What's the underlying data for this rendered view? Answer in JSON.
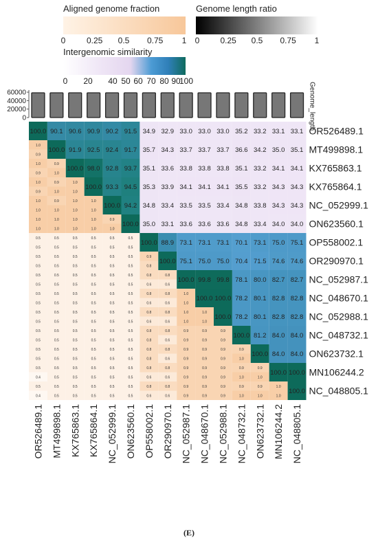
{
  "legends": {
    "aligned": {
      "title": "Aligned genome fraction",
      "ticks": [
        "0",
        "0.25",
        "0.5",
        "0.75",
        "1"
      ],
      "colors": [
        "#ffffff",
        "#f7c79a"
      ]
    },
    "length": {
      "title": "Genome length ratio",
      "ticks": [
        "0",
        "0.25",
        "0.5",
        "0.75",
        "1"
      ],
      "colors": [
        "#000000",
        "#ffffff"
      ]
    },
    "similarity": {
      "title": "Intergenomic similarity",
      "ticks": [
        "0",
        "20",
        "40",
        "50",
        "60",
        "70",
        "80",
        "90",
        "100"
      ],
      "tick_values": [
        0,
        20,
        40,
        50,
        60,
        70,
        80,
        90,
        100
      ],
      "colors": [
        "#ffffff",
        "#e6d8f0",
        "#4a9ad4",
        "#0e6b60"
      ]
    }
  },
  "caption": "(E)",
  "chart_data": {
    "type": "heatmap",
    "genomes": [
      "OR526489.1",
      "MT499898.1",
      "KX765863.1",
      "KX765864.1",
      "NC_052999.1",
      "ON623560.1",
      "OP558002.1",
      "OR290970.1",
      "NC_052987.1",
      "NC_048670.1",
      "NC_052988.1",
      "NC_048732.1",
      "ON623732.1",
      "MN106244.2",
      "NC_048805.1"
    ],
    "bar_axis_label": "Genome_length",
    "bar_axis_ticks": [
      0,
      20000,
      40000,
      60000
    ],
    "bar_axis_tick_labels": [
      "0",
      "20000",
      "40000",
      "60000"
    ],
    "genome_length_ylim": [
      0,
      65000
    ],
    "genome_lengths": [
      58500,
      58500,
      58500,
      58500,
      58500,
      58500,
      58500,
      58500,
      58500,
      58500,
      58500,
      58500,
      58500,
      58500,
      58500
    ],
    "similarity_upper": [
      [
        100.0,
        90.1,
        90.6,
        90.9,
        90.2,
        91.5,
        34.9,
        32.9,
        33.0,
        33.0,
        33.0,
        35.2,
        33.2,
        33.1,
        33.1
      ],
      [
        null,
        100.0,
        91.9,
        92.5,
        92.4,
        91.7,
        35.7,
        34.3,
        33.7,
        33.7,
        33.7,
        36.6,
        34.2,
        35.0,
        35.1
      ],
      [
        null,
        null,
        100.0,
        98.0,
        92.8,
        93.7,
        35.1,
        33.6,
        33.8,
        33.8,
        33.8,
        35.1,
        33.2,
        34.1,
        34.1
      ],
      [
        null,
        null,
        null,
        100.0,
        93.3,
        94.5,
        35.3,
        33.9,
        34.1,
        34.1,
        34.1,
        35.5,
        33.2,
        34.3,
        34.3
      ],
      [
        null,
        null,
        null,
        null,
        100.0,
        94.2,
        34.8,
        33.4,
        33.5,
        33.5,
        33.4,
        34.8,
        33.8,
        34.3,
        34.3
      ],
      [
        null,
        null,
        null,
        null,
        null,
        100.0,
        35.0,
        33.1,
        33.6,
        33.6,
        33.6,
        34.8,
        33.4,
        34.0,
        34.0
      ],
      [
        null,
        null,
        null,
        null,
        null,
        null,
        100.0,
        88.9,
        73.1,
        73.1,
        73.1,
        70.1,
        73.1,
        75.0,
        75.1
      ],
      [
        null,
        null,
        null,
        null,
        null,
        null,
        null,
        100.0,
        75.1,
        75.0,
        75.0,
        70.4,
        71.5,
        74.6,
        74.6
      ],
      [
        null,
        null,
        null,
        null,
        null,
        null,
        null,
        null,
        100.0,
        99.8,
        99.8,
        78.1,
        80.0,
        82.7,
        82.7
      ],
      [
        null,
        null,
        null,
        null,
        null,
        null,
        null,
        null,
        null,
        100.0,
        100.0,
        78.2,
        80.1,
        82.8,
        82.8
      ],
      [
        null,
        null,
        null,
        null,
        null,
        null,
        null,
        null,
        null,
        null,
        100.0,
        78.2,
        80.1,
        82.8,
        82.8
      ],
      [
        null,
        null,
        null,
        null,
        null,
        null,
        null,
        null,
        null,
        null,
        null,
        100.0,
        81.2,
        84.0,
        84.0
      ],
      [
        null,
        null,
        null,
        null,
        null,
        null,
        null,
        null,
        null,
        null,
        null,
        null,
        100.0,
        84.0,
        84.0
      ],
      [
        null,
        null,
        null,
        null,
        null,
        null,
        null,
        null,
        null,
        null,
        null,
        null,
        null,
        100.0,
        100.0
      ],
      [
        null,
        null,
        null,
        null,
        null,
        null,
        null,
        null,
        null,
        null,
        null,
        null,
        null,
        null,
        100.0
      ]
    ],
    "lower_top_values": [
      [],
      [
        1.0
      ],
      [
        1.0,
        0.9
      ],
      [
        1.0,
        0.9,
        1.0
      ],
      [
        1.0,
        0.9,
        1.0,
        1.0
      ],
      [
        1.0,
        1.0,
        1.0,
        1.0,
        0.9
      ],
      [
        0.5,
        0.5,
        0.5,
        0.5,
        0.5,
        0.5
      ],
      [
        0.5,
        0.5,
        0.5,
        0.5,
        0.5,
        0.5,
        0.9
      ],
      [
        0.5,
        0.5,
        0.5,
        0.5,
        0.5,
        0.5,
        0.8,
        0.8
      ],
      [
        0.5,
        0.5,
        0.5,
        0.5,
        0.5,
        0.5,
        0.8,
        0.8,
        1.0
      ],
      [
        0.5,
        0.5,
        0.5,
        0.5,
        0.5,
        0.5,
        0.8,
        0.8,
        1.0,
        1.0
      ],
      [
        0.5,
        0.5,
        0.5,
        0.5,
        0.5,
        0.5,
        0.8,
        0.8,
        0.9,
        0.9,
        0.9
      ],
      [
        0.5,
        0.5,
        0.5,
        0.5,
        0.5,
        0.5,
        0.8,
        0.8,
        0.9,
        0.9,
        0.9,
        0.9
      ],
      [
        0.5,
        0.5,
        0.5,
        0.5,
        0.5,
        0.5,
        0.8,
        0.8,
        0.9,
        0.9,
        0.9,
        0.9,
        0.9
      ],
      [
        0.5,
        0.5,
        0.5,
        0.5,
        0.5,
        0.5,
        0.8,
        0.8,
        0.9,
        0.9,
        0.9,
        0.9,
        0.9,
        1.0
      ]
    ],
    "lower_bottom_values": [
      [],
      [
        0.9
      ],
      [
        0.9,
        1.0
      ],
      [
        0.9,
        1.0,
        1.0
      ],
      [
        1.0,
        1.0,
        1.0,
        1.0
      ],
      [
        1.0,
        1.0,
        1.0,
        1.0,
        1.0
      ],
      [
        0.5,
        0.5,
        0.5,
        0.5,
        0.5,
        0.5
      ],
      [
        0.5,
        0.5,
        0.5,
        0.5,
        0.5,
        0.5,
        0.8
      ],
      [
        0.5,
        0.5,
        0.5,
        0.5,
        0.5,
        0.5,
        0.6,
        0.6
      ],
      [
        0.5,
        0.5,
        0.5,
        0.5,
        0.5,
        0.5,
        0.6,
        0.6,
        1.0
      ],
      [
        0.5,
        0.5,
        0.5,
        0.5,
        0.5,
        0.5,
        0.6,
        0.6,
        1.0,
        1.0
      ],
      [
        0.5,
        0.5,
        0.5,
        0.5,
        0.5,
        0.5,
        0.8,
        0.6,
        0.9,
        0.9,
        0.9
      ],
      [
        0.5,
        0.5,
        0.5,
        0.5,
        0.5,
        0.5,
        0.8,
        0.6,
        0.9,
        0.9,
        0.9,
        1.0
      ],
      [
        0.4,
        0.5,
        0.5,
        0.5,
        0.5,
        0.5,
        0.6,
        0.6,
        0.9,
        0.9,
        0.9,
        1.0,
        1.0
      ],
      [
        0.4,
        0.5,
        0.5,
        0.5,
        0.5,
        0.5,
        0.6,
        0.6,
        0.9,
        0.9,
        0.9,
        1.0,
        1.0,
        1.0
      ]
    ]
  }
}
